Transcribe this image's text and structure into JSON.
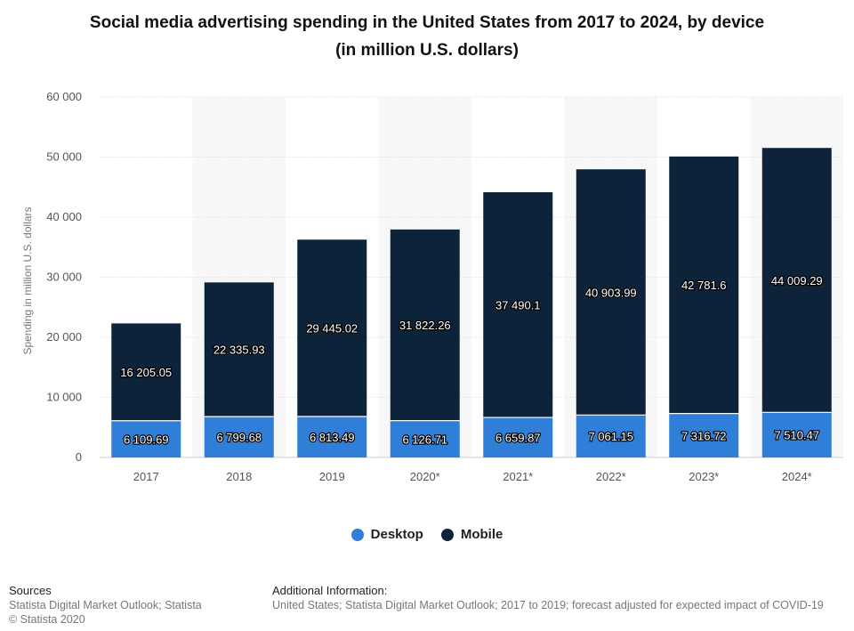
{
  "title_line1": "Social media advertising spending in the United States from 2017 to 2024, by device",
  "title_line2": "(in million U.S. dollars)",
  "chart_data": {
    "type": "bar",
    "stacked": true,
    "categories": [
      "2017",
      "2018",
      "2019",
      "2020*",
      "2021*",
      "2022*",
      "2023*",
      "2024*"
    ],
    "series": [
      {
        "name": "Desktop",
        "color": "#2f7ed8",
        "values": [
          6109.69,
          6799.68,
          6813.49,
          6126.71,
          6659.87,
          7061.15,
          7316.72,
          7510.47
        ],
        "labels": [
          "6 109.69",
          "6 799.68",
          "6 813.49",
          "6 126.71",
          "6 659.87",
          "7 061.15",
          "7 316.72",
          "7 510.47"
        ]
      },
      {
        "name": "Mobile",
        "color": "#0d233a",
        "values": [
          16205.05,
          22335.93,
          29445.02,
          31822.26,
          37490.1,
          40903.99,
          42781.6,
          44009.29
        ],
        "labels": [
          "16 205.05",
          "22 335.93",
          "29 445.02",
          "31 822.26",
          "37 490.1",
          "40 903.99",
          "42 781.6",
          "44 009.29"
        ]
      }
    ],
    "ylabel": "Spending in million U.S. dollars",
    "ylim": [
      0,
      60000
    ],
    "yticks": [
      0,
      10000,
      20000,
      30000,
      40000,
      50000,
      60000
    ],
    "ytick_labels": [
      "0",
      "10 000",
      "20 000",
      "30 000",
      "40 000",
      "50 000",
      "60 000"
    ],
    "grid": true,
    "legend_position": "bottom"
  },
  "footer": {
    "sources_heading": "Sources",
    "sources_line1": "Statista Digital Market Outlook; Statista",
    "sources_line2": "© Statista 2020",
    "additional_heading": "Additional Information:",
    "additional_text": "United States; Statista Digital Market Outlook; 2017 to 2019; forecast adjusted for expected impact of COVID-19"
  }
}
